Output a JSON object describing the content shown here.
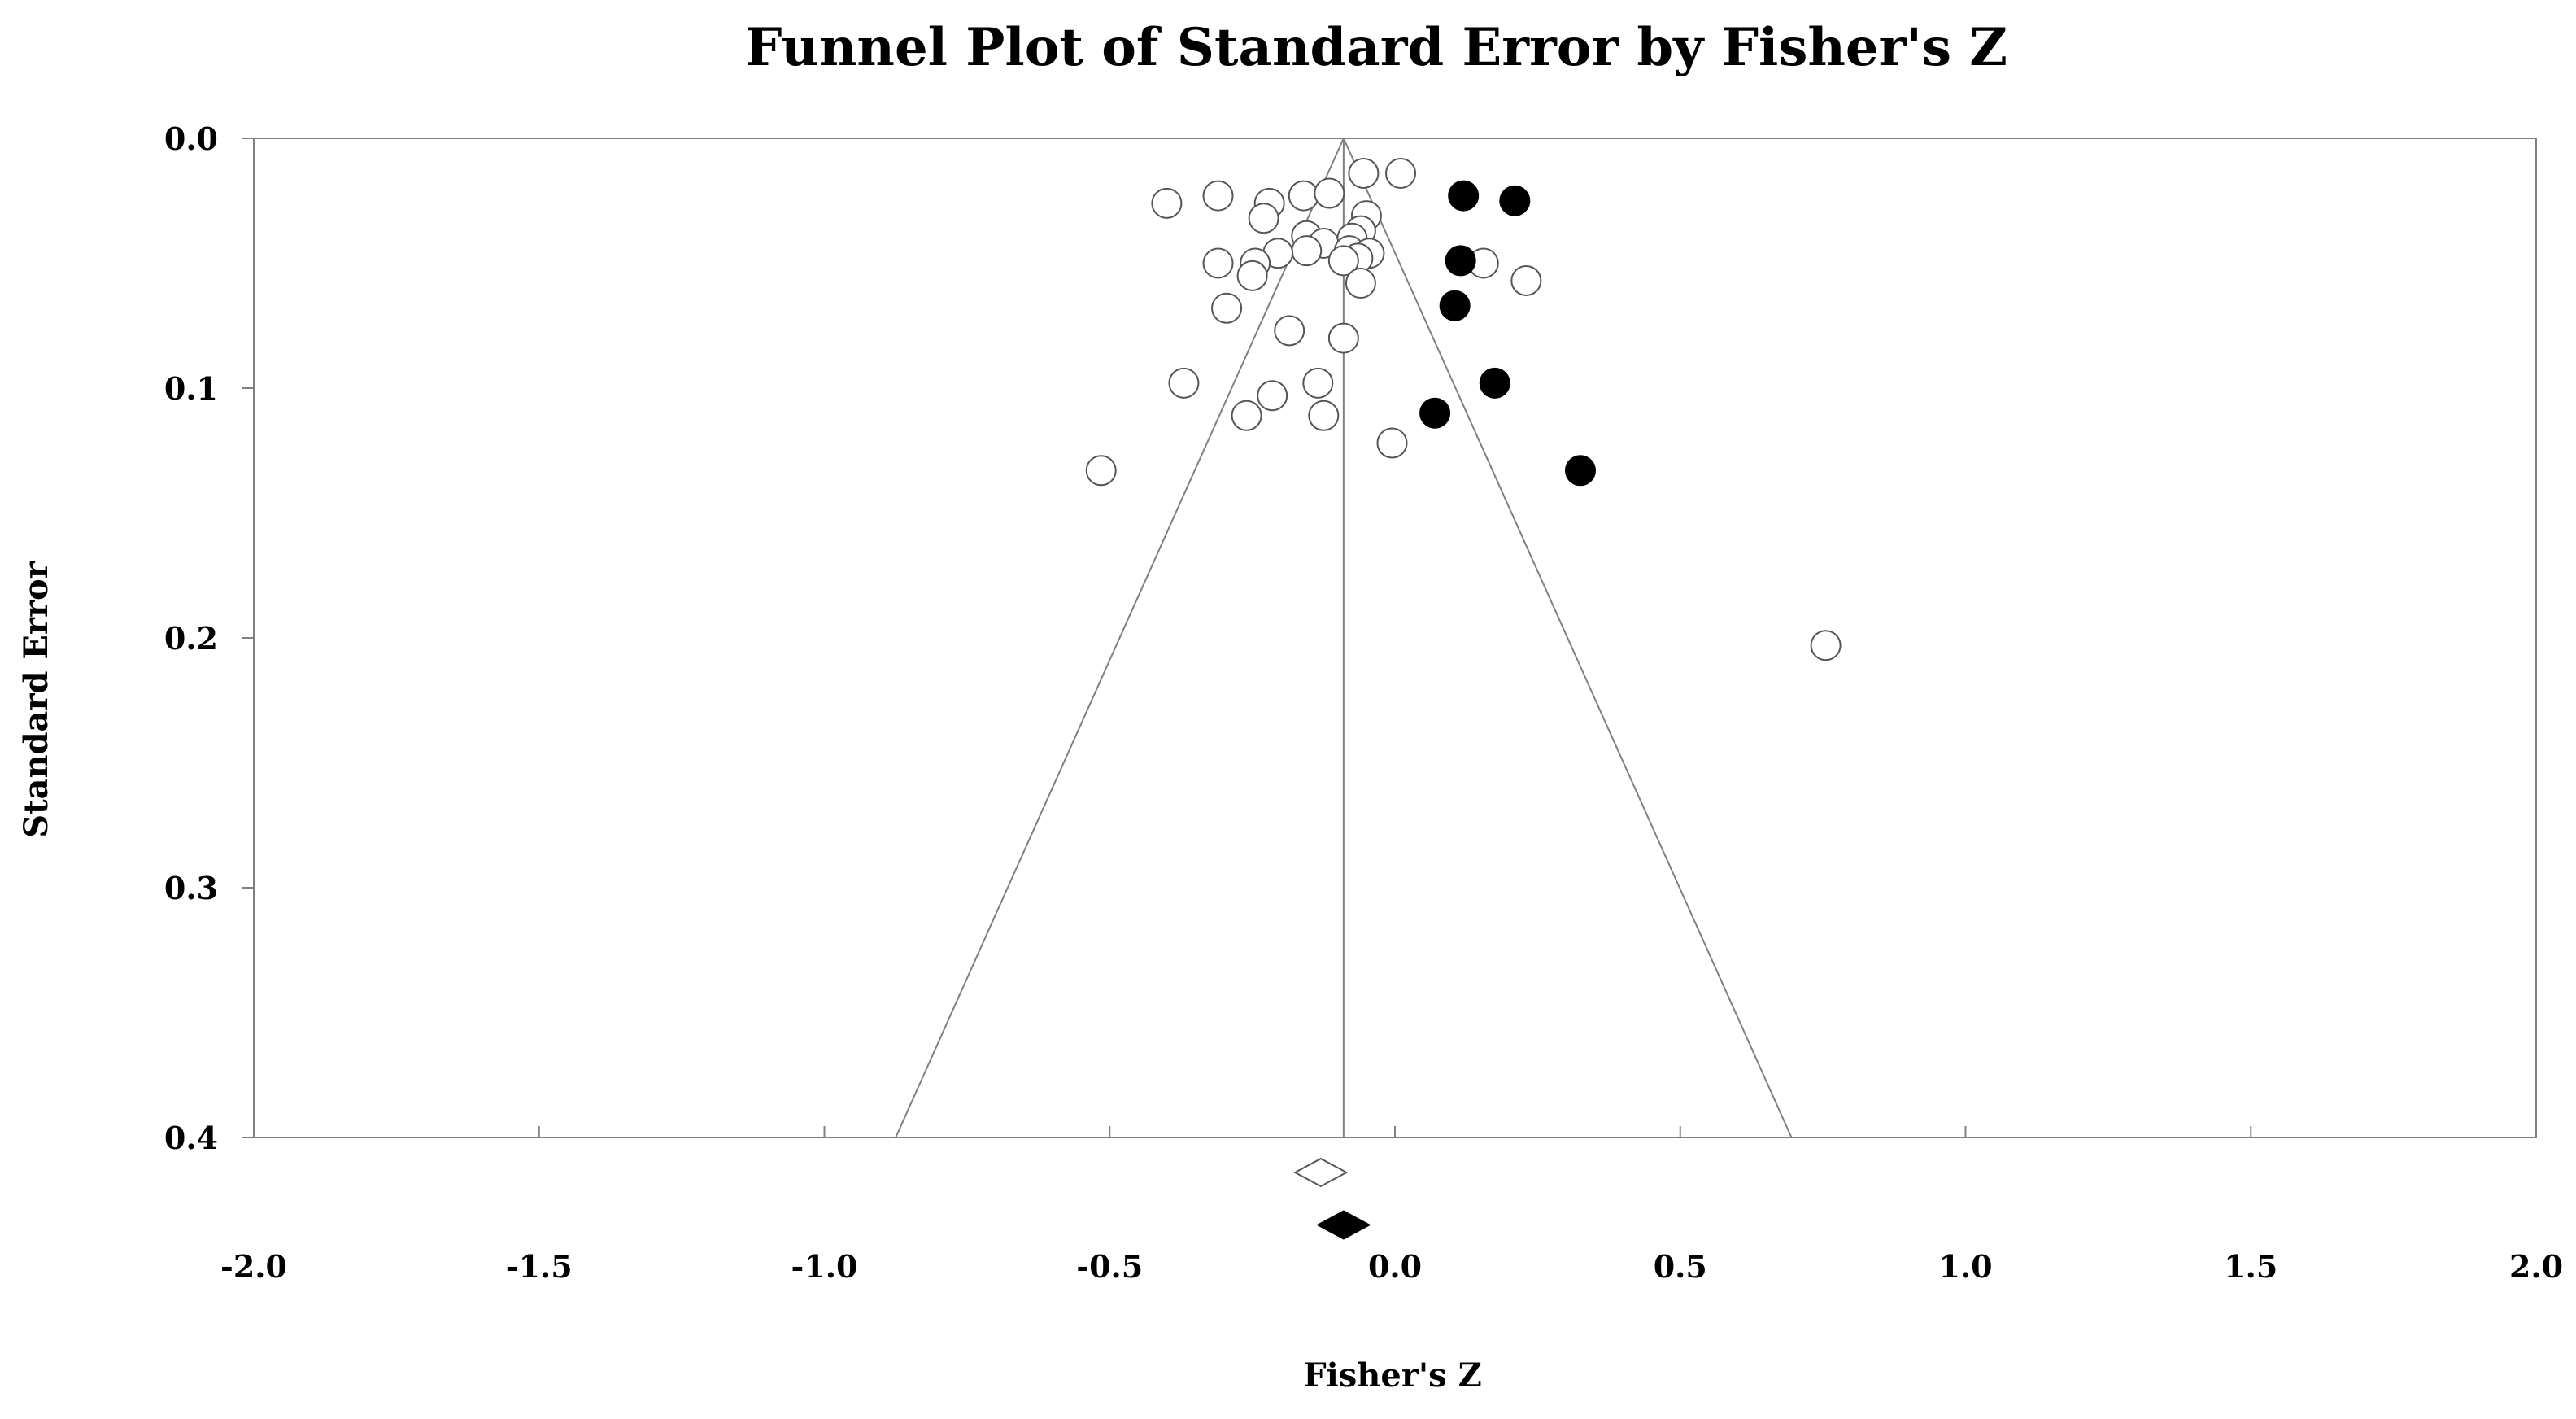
{
  "chart_data": {
    "type": "scatter",
    "title": "Funnel Plot of Standard Error by Fisher's Z",
    "xlabel": "Fisher's Z",
    "ylabel": "Standard Error",
    "xlim": [
      -2.0,
      2.0
    ],
    "ylim": [
      0.0,
      0.4
    ],
    "y_inverted": true,
    "x_ticks": [
      "-2.0",
      "-1.5",
      "-1.0",
      "-0.5",
      "0.0",
      "0.5",
      "1.0",
      "1.5",
      "2.0"
    ],
    "y_ticks": [
      "0.0",
      "0.1",
      "0.2",
      "0.3",
      "0.4"
    ],
    "grid": false,
    "funnel_center": -0.09,
    "funnel_bottom": [
      -0.875,
      0.695
    ],
    "series": [
      {
        "style": "observed",
        "marker": "open-circle",
        "points": [
          {
            "x": -0.4,
            "y": 0.026
          },
          {
            "x": -0.31,
            "y": 0.023
          },
          {
            "x": -0.22,
            "y": 0.026
          },
          {
            "x": -0.23,
            "y": 0.032
          },
          {
            "x": -0.16,
            "y": 0.023
          },
          {
            "x": -0.115,
            "y": 0.022
          },
          {
            "x": -0.055,
            "y": 0.014
          },
          {
            "x": 0.01,
            "y": 0.014
          },
          {
            "x": -0.05,
            "y": 0.031
          },
          {
            "x": -0.06,
            "y": 0.037
          },
          {
            "x": -0.075,
            "y": 0.04
          },
          {
            "x": -0.155,
            "y": 0.039
          },
          {
            "x": -0.125,
            "y": 0.042
          },
          {
            "x": -0.08,
            "y": 0.045
          },
          {
            "x": -0.045,
            "y": 0.046
          },
          {
            "x": -0.065,
            "y": 0.048
          },
          {
            "x": -0.09,
            "y": 0.049
          },
          {
            "x": -0.155,
            "y": 0.045
          },
          {
            "x": -0.205,
            "y": 0.046
          },
          {
            "x": -0.245,
            "y": 0.05
          },
          {
            "x": -0.31,
            "y": 0.05
          },
          {
            "x": -0.25,
            "y": 0.055
          },
          {
            "x": -0.06,
            "y": 0.058
          },
          {
            "x": 0.155,
            "y": 0.05
          },
          {
            "x": 0.23,
            "y": 0.057
          },
          {
            "x": -0.295,
            "y": 0.068
          },
          {
            "x": -0.185,
            "y": 0.077
          },
          {
            "x": -0.09,
            "y": 0.08
          },
          {
            "x": -0.37,
            "y": 0.098
          },
          {
            "x": -0.135,
            "y": 0.098
          },
          {
            "x": -0.215,
            "y": 0.103
          },
          {
            "x": -0.26,
            "y": 0.111
          },
          {
            "x": -0.125,
            "y": 0.111
          },
          {
            "x": -0.005,
            "y": 0.122
          },
          {
            "x": -0.515,
            "y": 0.133
          },
          {
            "x": 0.755,
            "y": 0.203
          }
        ]
      },
      {
        "style": "imputed",
        "marker": "filled-circle",
        "points": [
          {
            "x": 0.12,
            "y": 0.023
          },
          {
            "x": 0.21,
            "y": 0.025
          },
          {
            "x": 0.115,
            "y": 0.049
          },
          {
            "x": 0.105,
            "y": 0.067
          },
          {
            "x": 0.175,
            "y": 0.098
          },
          {
            "x": 0.07,
            "y": 0.11
          },
          {
            "x": 0.325,
            "y": 0.133
          }
        ]
      }
    ],
    "summary_diamonds": [
      {
        "marker": "open-diamond",
        "x": -0.13,
        "y": 0.414,
        "halfwidth": 0.045
      },
      {
        "marker": "filled-diamond",
        "x": -0.09,
        "y": 0.435,
        "halfwidth": 0.045
      }
    ]
  }
}
